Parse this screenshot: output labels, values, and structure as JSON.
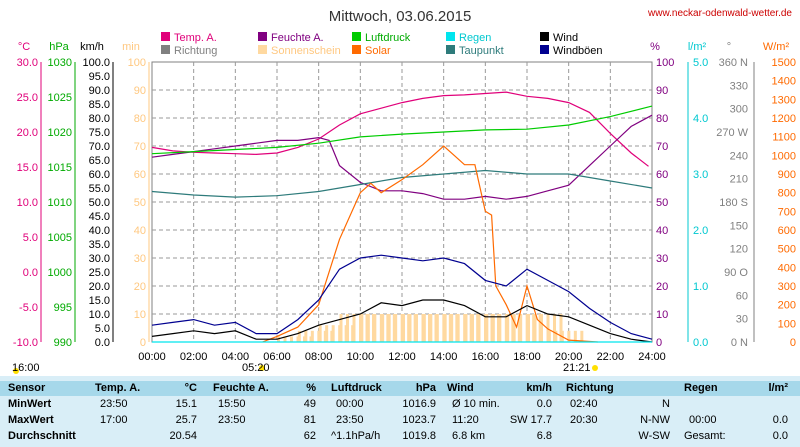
{
  "header": {
    "title": "Mittwoch, 03.06.2015",
    "site": "www.neckar-odenwald-wetter.de"
  },
  "colors": {
    "temp": "#e0007a",
    "feuchte": "#800080",
    "luftdruck": "#00cc00",
    "regen": "#00e5ee",
    "wind": "#000000",
    "richtung": "#808080",
    "sonnenschein": "#ffd9a0",
    "solar": "#ff6a00",
    "taupunkt": "#2e7b7b",
    "windboeen": "#000090"
  },
  "legend": {
    "temp": "Temp. A.",
    "feuchte": "Feuchte A.",
    "luftdruck": "Luftdruck",
    "regen": "Regen",
    "wind": "Wind",
    "richtung": "Richtung",
    "sonnenschein": "Sonnenschein",
    "solar": "Solar",
    "taupunkt": "Taupunkt",
    "windboeen": "Windböen"
  },
  "axes": {
    "unit_temp": "°C",
    "unit_hpa": "hPa",
    "unit_kmh": "km/h",
    "unit_min": "min",
    "unit_pct": "%",
    "unit_lm2": "l/m²",
    "unit_deg": "°",
    "unit_wm2": "W/m²",
    "temp_ticks": [
      "30.0",
      "25.0",
      "20.0",
      "15.0",
      "10.0",
      "5.0",
      "0.0",
      "-5.0",
      "-10.0"
    ],
    "hpa_ticks": [
      "1030",
      "1025",
      "1020",
      "1015",
      "1010",
      "1005",
      "1000",
      "995",
      "990"
    ],
    "kmh_ticks": [
      "100.0",
      "95.0",
      "90.0",
      "85.0",
      "80.0",
      "75.0",
      "70.0",
      "65.0",
      "60.0",
      "55.0",
      "50.0",
      "45.0",
      "40.0",
      "35.0",
      "30.0",
      "25.0",
      "20.0",
      "15.0",
      "10.0",
      "5.0",
      "0.0"
    ],
    "min_ticks": [
      "100",
      "90",
      "80",
      "70",
      "60",
      "50",
      "40",
      "30",
      "20",
      "10",
      "0"
    ],
    "pct_ticks": [
      "100",
      "90",
      "80",
      "70",
      "60",
      "50",
      "40",
      "30",
      "20",
      "10",
      "0"
    ],
    "rain_ticks": [
      "5.0",
      "4.0",
      "3.0",
      "2.0",
      "1.0",
      "0.0"
    ],
    "deg_ticks": [
      "360 N",
      "330",
      "300",
      "270 W",
      "240",
      "210",
      "180 S",
      "150",
      "120",
      "90 O",
      "60",
      "30",
      "0 N"
    ],
    "wm2_ticks": [
      "1500",
      "1400",
      "1300",
      "1200",
      "1100",
      "1000",
      "900",
      "800",
      "700",
      "600",
      "500",
      "400",
      "300",
      "200",
      "100",
      "0"
    ],
    "x_ticks": [
      "00:00",
      "02:00",
      "04:00",
      "06:00",
      "08:00",
      "10:00",
      "12:00",
      "14:00",
      "16:00",
      "18:00",
      "20:00",
      "22:00",
      "24:00"
    ],
    "sunrise": "05:20",
    "sunset": "21:21",
    "daylight": "16:00"
  },
  "chart_data": {
    "type": "line",
    "title": "Mittwoch, 03.06.2015",
    "x_unit": "hours",
    "x_range": [
      0,
      24
    ],
    "series": [
      {
        "name": "Temp. A.",
        "axis": "°C",
        "range": [
          -10,
          30
        ],
        "color": "#e0007a",
        "x": [
          0,
          1,
          2,
          3,
          4,
          5,
          6,
          7,
          8,
          9,
          10,
          11,
          12,
          13,
          14,
          15,
          16,
          17,
          18,
          19,
          20,
          21,
          22,
          23,
          23.83
        ],
        "values": [
          17.8,
          17.3,
          17.1,
          17.0,
          16.9,
          16.8,
          17.0,
          17.8,
          19.0,
          21.0,
          22.6,
          23.4,
          24.2,
          24.8,
          25.2,
          25.3,
          25.5,
          25.7,
          25.1,
          24.8,
          24.2,
          22.8,
          19.8,
          17.0,
          15.1
        ]
      },
      {
        "name": "Feuchte A.",
        "axis": "%",
        "range": [
          0,
          100
        ],
        "color": "#800080",
        "x": [
          0,
          1,
          2,
          3,
          4,
          5,
          6,
          7,
          8,
          8.5,
          9,
          10,
          11,
          12,
          13,
          14,
          15,
          16,
          17,
          18,
          19,
          20,
          21,
          22,
          23,
          24
        ],
        "values": [
          66,
          67,
          68,
          69,
          70,
          71,
          72,
          72,
          73,
          72,
          63,
          57,
          54,
          54,
          53,
          51,
          51,
          52,
          51,
          52,
          54,
          56,
          63,
          70,
          77,
          81
        ]
      },
      {
        "name": "Luftdruck",
        "axis": "hPa",
        "range": [
          990,
          1030
        ],
        "color": "#00cc00",
        "x": [
          0,
          2,
          4,
          6,
          8,
          10,
          12,
          14,
          16,
          18,
          20,
          22,
          24
        ],
        "values": [
          1016.9,
          1017.2,
          1017.5,
          1017.8,
          1018.4,
          1019.3,
          1019.7,
          1020.0,
          1020.3,
          1020.4,
          1021.0,
          1022.2,
          1023.7
        ]
      },
      {
        "name": "Taupunkt",
        "axis": "°C",
        "range": [
          -10,
          30
        ],
        "color": "#2e7b7b",
        "x": [
          0,
          2,
          4,
          6,
          8,
          10,
          12,
          14,
          16,
          18,
          20,
          22,
          24
        ],
        "values": [
          11.5,
          11.0,
          10.7,
          10.9,
          11.5,
          12.5,
          13.5,
          14.0,
          14.5,
          14.0,
          14.0,
          13.0,
          12.0
        ]
      },
      {
        "name": "Solar",
        "axis": "W/m²",
        "range": [
          0,
          1500
        ],
        "color": "#ff6a00",
        "x": [
          5.3,
          6,
          7,
          8,
          9,
          10,
          10.5,
          11,
          12,
          13,
          14,
          14.5,
          15,
          15.5,
          16,
          16.3,
          16.5,
          17,
          17.5,
          18,
          18.5,
          19,
          20,
          21.4
        ],
        "values": [
          0,
          30,
          80,
          200,
          550,
          800,
          850,
          800,
          870,
          950,
          1050,
          1000,
          950,
          950,
          700,
          680,
          300,
          200,
          80,
          300,
          120,
          70,
          10,
          0
        ]
      },
      {
        "name": "Wind",
        "axis": "km/h",
        "range": [
          0,
          100
        ],
        "color": "#000000",
        "x": [
          0,
          1,
          2,
          3,
          4,
          5,
          6,
          7,
          8,
          9,
          10,
          11,
          12,
          13,
          14,
          15,
          16,
          17,
          18,
          19,
          20,
          21,
          22,
          23,
          24
        ],
        "values": [
          2,
          3,
          4,
          3,
          4,
          1,
          1,
          3,
          6,
          8,
          10,
          14,
          13,
          15,
          15,
          13,
          9,
          9,
          13,
          10,
          9,
          6,
          3,
          1,
          0
        ]
      },
      {
        "name": "Windböen",
        "axis": "km/h",
        "range": [
          0,
          100
        ],
        "color": "#000090",
        "x": [
          0,
          1,
          2,
          3,
          4,
          5,
          6,
          7,
          8,
          9,
          10,
          11,
          12,
          13,
          14,
          15,
          16,
          17,
          18,
          19,
          20,
          21,
          22,
          23,
          24
        ],
        "values": [
          6,
          7,
          8,
          6,
          7,
          3,
          3,
          8,
          15,
          26,
          30,
          31,
          30,
          29,
          30,
          28,
          22,
          20,
          26,
          22,
          18,
          12,
          7,
          3,
          1
        ]
      },
      {
        "name": "Sonnenschein",
        "axis": "min",
        "range": [
          0,
          100
        ],
        "color": "#ffd9a0",
        "x": [
          6,
          7,
          8,
          9,
          10,
          11,
          12,
          13,
          14,
          15,
          16,
          17,
          18,
          19
        ],
        "values": [
          2,
          4,
          6,
          10,
          10,
          10,
          10,
          10,
          10,
          10,
          10,
          10,
          10,
          4
        ]
      },
      {
        "name": "Regen",
        "axis": "l/m²",
        "range": [
          0,
          5
        ],
        "color": "#00e5ee",
        "x": [
          0,
          24
        ],
        "values": [
          0,
          0
        ]
      }
    ]
  },
  "stats": {
    "headers": {
      "sensor": "Sensor",
      "temp": "Temp. A.",
      "temp_unit": "°C",
      "feuchte": "Feuchte A.",
      "feuchte_unit": "%",
      "luftdruck": "Luftdruck",
      "luftdruck_unit": "hPa",
      "wind": "Wind",
      "wind_unit": "km/h",
      "richtung": "Richtung",
      "regen": "Regen",
      "regen_unit": "l/m²"
    },
    "rows": [
      {
        "label": "MinWert",
        "temp_t": "23:50",
        "temp_v": "15.1",
        "hum_t": "15:50",
        "hum_v": "49",
        "press_t": "00:00",
        "press_v": "1016.9",
        "wind_t": "Ø 10 min.",
        "wind_v": "0.0",
        "dir_t": "02:40",
        "dir_v": "N",
        "rain_t": "",
        "rain_v": ""
      },
      {
        "label": "MaxWert",
        "temp_t": "17:00",
        "temp_v": "25.7",
        "hum_t": "23:50",
        "hum_v": "81",
        "press_t": "23:50",
        "press_v": "1023.7",
        "wind_t": "11:20",
        "wind_v": "SW 17.7",
        "dir_t": "20:30",
        "dir_v": "N-NW",
        "rain_t": "00:00",
        "rain_v": "0.0"
      },
      {
        "label": "Durchschnitt",
        "temp_t": "",
        "temp_v": "20.54",
        "hum_t": "",
        "hum_v": "62",
        "press_t": "^1.1hPa/h",
        "press_v": "1019.8",
        "wind_t": "6.8 km",
        "wind_v": "6.8",
        "dir_t": "",
        "dir_v": "W-SW",
        "rain_t": "Gesamt:",
        "rain_v": "0.0"
      }
    ]
  }
}
